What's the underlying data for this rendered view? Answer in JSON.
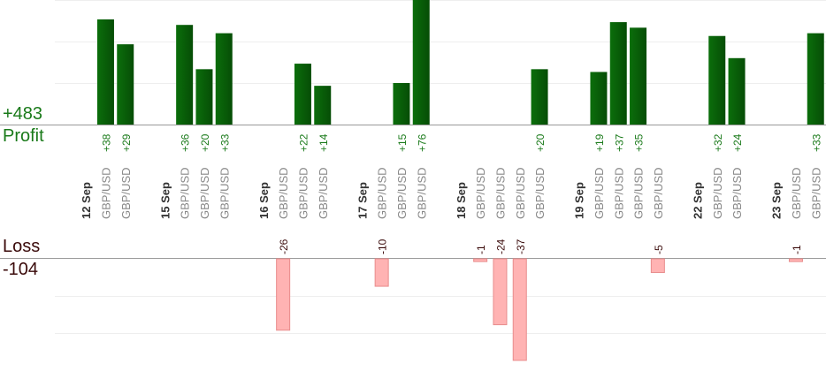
{
  "summary": {
    "profit_total": "+483",
    "profit_label": "Profit",
    "loss_label": "Loss",
    "loss_total": "-104"
  },
  "colors": {
    "profit_bar": "#0b6e0b",
    "profit_bar_dark": "#064d06",
    "profit_text": "#1a7a1a",
    "loss_bar": "#ffb3b3",
    "loss_bar_edge": "#e88c8c",
    "loss_text": "#3a0a0a",
    "day_text": "#333333",
    "pair_text": "#888888",
    "grid": "#eeeeee",
    "axis": "#999999"
  },
  "chart_data": {
    "type": "bar",
    "profit_scale_max": 30,
    "loss_scale_max": 37,
    "items": [
      {
        "kind": "day",
        "label": "12 Sep"
      },
      {
        "kind": "trade",
        "label": "GBP/USD",
        "value": 38
      },
      {
        "kind": "trade",
        "label": "GBP/USD",
        "value": 29
      },
      {
        "kind": "gap"
      },
      {
        "kind": "day",
        "label": "15 Sep"
      },
      {
        "kind": "trade",
        "label": "GBP/USD",
        "value": 36
      },
      {
        "kind": "trade",
        "label": "GBP/USD",
        "value": 20
      },
      {
        "kind": "trade",
        "label": "GBP/USD",
        "value": 33
      },
      {
        "kind": "gap"
      },
      {
        "kind": "day",
        "label": "16 Sep"
      },
      {
        "kind": "trade",
        "label": "GBP/USD",
        "value": -26
      },
      {
        "kind": "trade",
        "label": "GBP/USD",
        "value": 22
      },
      {
        "kind": "trade",
        "label": "GBP/USD",
        "value": 14
      },
      {
        "kind": "gap"
      },
      {
        "kind": "day",
        "label": "17 Sep"
      },
      {
        "kind": "trade",
        "label": "GBP/USD",
        "value": -10
      },
      {
        "kind": "trade",
        "label": "GBP/USD",
        "value": 15
      },
      {
        "kind": "trade",
        "label": "GBP/USD",
        "value": 76
      },
      {
        "kind": "gap"
      },
      {
        "kind": "day",
        "label": "18 Sep"
      },
      {
        "kind": "trade",
        "label": "GBP/USD",
        "value": -1
      },
      {
        "kind": "trade",
        "label": "GBP/USD",
        "value": -24
      },
      {
        "kind": "trade",
        "label": "GBP/USD",
        "value": -37
      },
      {
        "kind": "trade",
        "label": "GBP/USD",
        "value": 20
      },
      {
        "kind": "gap"
      },
      {
        "kind": "day",
        "label": "19 Sep"
      },
      {
        "kind": "trade",
        "label": "GBP/USD",
        "value": 19
      },
      {
        "kind": "trade",
        "label": "GBP/USD",
        "value": 37
      },
      {
        "kind": "trade",
        "label": "GBP/USD",
        "value": 35
      },
      {
        "kind": "trade",
        "label": "GBP/USD",
        "value": -5
      },
      {
        "kind": "gap"
      },
      {
        "kind": "day",
        "label": "22 Sep"
      },
      {
        "kind": "trade",
        "label": "GBP/USD",
        "value": 32
      },
      {
        "kind": "trade",
        "label": "GBP/USD",
        "value": 24
      },
      {
        "kind": "gap"
      },
      {
        "kind": "day",
        "label": "23 Sep"
      },
      {
        "kind": "trade",
        "label": "GBP/USD",
        "value": -1
      },
      {
        "kind": "trade",
        "label": "GBP/USD",
        "value": 33
      }
    ]
  }
}
